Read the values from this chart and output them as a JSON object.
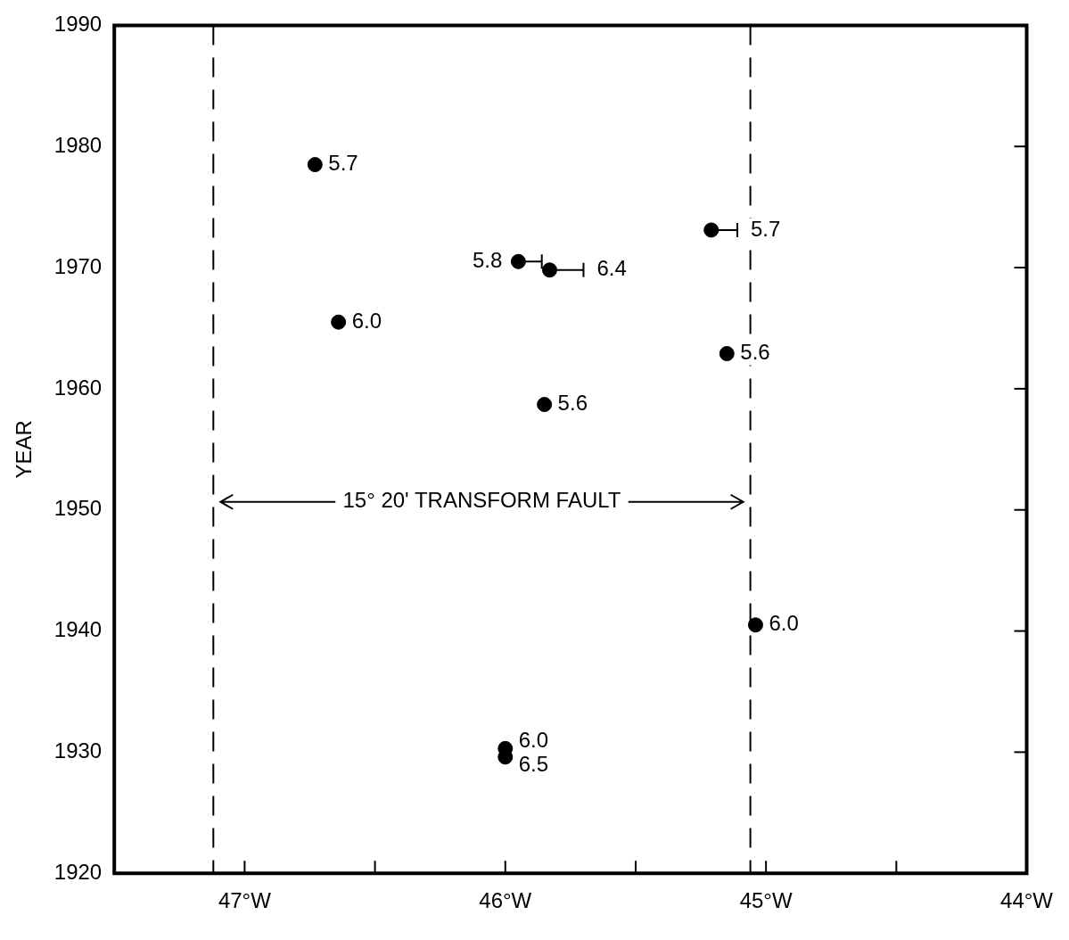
{
  "chart_data": {
    "type": "scatter",
    "ylabel": "YEAR",
    "x": [
      -46.73,
      -45.95,
      -45.83,
      -45.21,
      -46.64,
      -45.15,
      -45.85,
      -45.04,
      -46.0,
      -46.0
    ],
    "values": [
      1978.5,
      1970.5,
      1969.8,
      1973.1,
      1965.5,
      1962.9,
      1958.7,
      1940.5,
      1930.3,
      1929.6
    ],
    "xerrors": [
      null,
      [
        -45.95,
        -45.86
      ],
      [
        -45.83,
        -45.7
      ],
      [
        -45.21,
        -45.11
      ],
      null,
      null,
      null,
      null,
      null,
      null
    ],
    "annotations": [
      {
        "text": "5.7",
        "x": -46.73,
        "y": 1978.5
      },
      {
        "text": "5.8",
        "x": -45.95,
        "y": 1970.5
      },
      {
        "text": "6.4",
        "x": -45.83,
        "y": 1969.8
      },
      {
        "text": "5.7",
        "x": -45.21,
        "y": 1973.1
      },
      {
        "text": "6.0",
        "x": -46.64,
        "y": 1965.5
      },
      {
        "text": "5.6",
        "x": -45.15,
        "y": 1962.9
      },
      {
        "text": "5.6",
        "x": -45.85,
        "y": 1958.7
      },
      {
        "text": "6.0",
        "x": -45.04,
        "y": 1940.5
      },
      {
        "text": "6.0",
        "x": -46.0,
        "y": 1930.3
      },
      {
        "text": "6.5",
        "x": -46.0,
        "y": 1929.6
      },
      "15° 20' TRANSFORM FAULT"
    ],
    "color": "#000000",
    "marker": "circle",
    "grid": false,
    "legend": false,
    "xlim": [
      -47.5,
      -44
    ],
    "xticks": [
      {
        "value": -47,
        "label": "47°W"
      },
      {
        "value": -46.5,
        "label": null
      },
      {
        "value": -46,
        "label": "46°W"
      },
      {
        "value": -45.5,
        "label": null
      },
      {
        "value": -45,
        "label": "45°W"
      },
      {
        "value": -44.5,
        "label": null
      },
      {
        "value": -44,
        "label": "44°W"
      }
    ],
    "ylim": [
      1920,
      1990
    ],
    "yticks": [
      1920,
      1930,
      1940,
      1950,
      1960,
      1970,
      1980,
      1990
    ],
    "ref_lines": [
      {
        "axis": "x",
        "value": -47.12,
        "line_style": "dashed"
      },
      {
        "axis": "x",
        "value": -45.06,
        "line_style": "dashed"
      }
    ]
  }
}
